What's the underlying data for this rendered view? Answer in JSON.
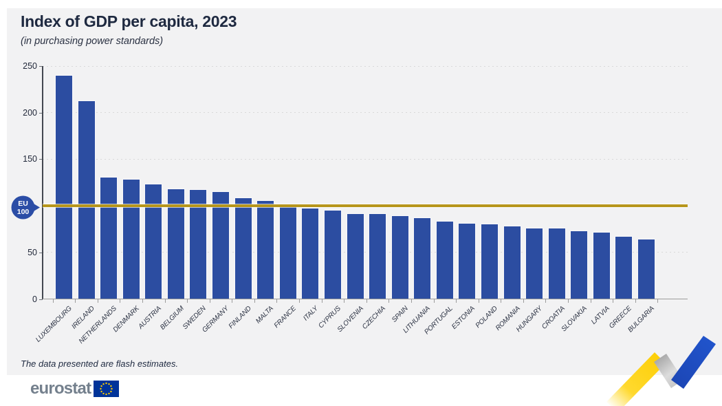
{
  "header": {
    "title": "Index of GDP per capita, 2023",
    "subtitle": "(in purchasing power standards)"
  },
  "chart_data": {
    "type": "bar",
    "title": "Index of GDP per capita, 2023",
    "subtitle": "(in purchasing power standards)",
    "categories": [
      "LUXEMBOURG",
      "IRELAND",
      "NETHERLANDS",
      "DENMARK",
      "AUSTRIA",
      "BELGIUM",
      "SWEDEN",
      "GERMANY",
      "FINLAND",
      "MALTA",
      "FRANCE",
      "ITALY",
      "CYPRUS",
      "SLOVENIA",
      "CZECHIA",
      "SPAIN",
      "LITHUANIA",
      "PORTUGAL",
      "ESTONIA",
      "POLAND",
      "ROMANIA",
      "HUNGARY",
      "CROATIA",
      "SLOVAKIA",
      "LATVIA",
      "GREECE",
      "BULGARIA"
    ],
    "values": [
      240,
      212,
      130,
      128,
      123,
      118,
      117,
      115,
      108,
      105,
      100,
      97,
      95,
      91,
      91,
      89,
      87,
      83,
      81,
      80,
      78,
      76,
      76,
      73,
      71,
      67,
      64
    ],
    "ylim": [
      0,
      250
    ],
    "yticks": [
      0,
      50,
      100,
      150,
      200,
      250
    ],
    "grid": "horizontal-dotted",
    "legend": "none",
    "bar_color": "#2c4da1",
    "reference_line": {
      "value": 100,
      "color": "#b7961b",
      "badge_line1": "EU",
      "badge_line2": "100"
    }
  },
  "footer": {
    "note": "The data presented are flash estimates.",
    "brand": "eurostat"
  },
  "colors": {
    "panel_bg": "#f2f2f3",
    "bar": "#2c4da1",
    "reference_gold": "#b7961b",
    "badge_blue": "#2b4da6",
    "title_text": "#1e2940",
    "logo_gray": "#74808d",
    "flag_blue": "#003399",
    "star_yellow": "#ffcc00",
    "ribbon_yellow": "#ffd617",
    "ribbon_blue": "#2154cb"
  }
}
